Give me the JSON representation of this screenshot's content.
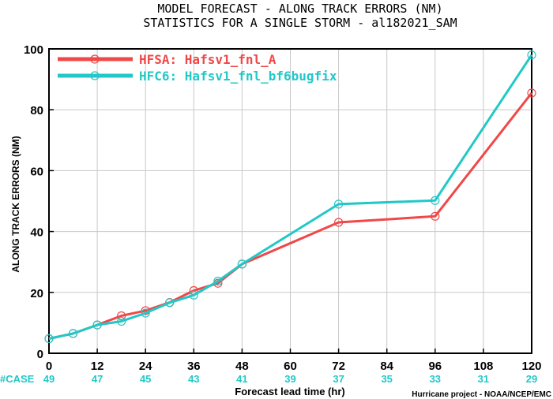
{
  "chart_data": {
    "type": "line",
    "title": "MODEL FORECAST - ALONG TRACK ERRORS (NM)",
    "subtitle": "STATISTICS FOR A SINGLE STORM - al182021_SAM",
    "xlabel": "Forecast lead time (hr)",
    "ylabel": "ALONG TRACK ERRORS (NM)",
    "xlim": [
      0,
      120
    ],
    "ylim": [
      0,
      100
    ],
    "x_ticks": [
      0,
      12,
      24,
      36,
      48,
      60,
      72,
      84,
      96,
      108,
      120
    ],
    "y_ticks": [
      0,
      20,
      40,
      60,
      80,
      100
    ],
    "grid": true,
    "legend_position": "top-left",
    "series": [
      {
        "name": "HFSA: Hafsv1_fnl_A",
        "color": "#f04848",
        "x": [
          0,
          6,
          12,
          18,
          24,
          30,
          36,
          42,
          48,
          72,
          96,
          120
        ],
        "y": [
          4.8,
          6.5,
          9.3,
          12.3,
          14.0,
          16.7,
          20.6,
          23.0,
          29.3,
          43.0,
          45.0,
          85.5
        ]
      },
      {
        "name": "HFC6: Hafsv1_fnl_bf6bugfix",
        "color": "#22c8c8",
        "x": [
          0,
          6,
          12,
          18,
          24,
          30,
          36,
          42,
          48,
          72,
          96,
          120
        ],
        "y": [
          4.8,
          6.5,
          9.3,
          10.5,
          13.2,
          16.6,
          19.1,
          23.7,
          29.3,
          49.0,
          50.2,
          98.0
        ]
      }
    ],
    "case_label": "#CASE",
    "case_color": "#22c8c8",
    "case_counts": [
      {
        "x": 0,
        "n": "49"
      },
      {
        "x": 12,
        "n": "47"
      },
      {
        "x": 24,
        "n": "45"
      },
      {
        "x": 36,
        "n": "43"
      },
      {
        "x": 48,
        "n": "41"
      },
      {
        "x": 60,
        "n": "39"
      },
      {
        "x": 72,
        "n": "37"
      },
      {
        "x": 84,
        "n": "35"
      },
      {
        "x": 96,
        "n": "33"
      },
      {
        "x": 108,
        "n": "31"
      },
      {
        "x": 120,
        "n": "29"
      }
    ],
    "credit": "Hurricane project - NOAA/NCEP/EMC"
  }
}
